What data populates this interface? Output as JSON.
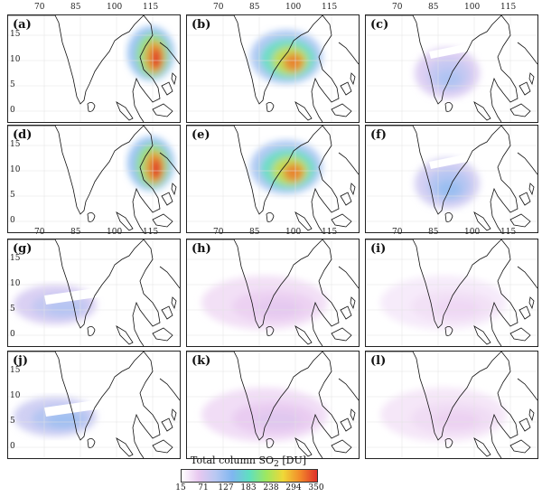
{
  "figure": {
    "panels": [
      {
        "label": "(a)",
        "kind": "A",
        "intensity": 1.0
      },
      {
        "label": "(b)",
        "kind": "B",
        "intensity": 1.0
      },
      {
        "label": "(c)",
        "kind": "C",
        "intensity": 0.6
      },
      {
        "label": "(d)",
        "kind": "A",
        "intensity": 1.0
      },
      {
        "label": "(e)",
        "kind": "B",
        "intensity": 1.0
      },
      {
        "label": "(f)",
        "kind": "C",
        "intensity": 0.7
      },
      {
        "label": "(g)",
        "kind": "D",
        "intensity": 0.6
      },
      {
        "label": "(h)",
        "kind": "E",
        "intensity": 0.45
      },
      {
        "label": "(i)",
        "kind": "E",
        "intensity": 0.3
      },
      {
        "label": "(j)",
        "kind": "D",
        "intensity": 0.7
      },
      {
        "label": "(k)",
        "kind": "E",
        "intensity": 0.5
      },
      {
        "label": "(l)",
        "kind": "E",
        "intensity": 0.35
      }
    ],
    "lon_ticks": [
      "70",
      "85",
      "100",
      "115"
    ],
    "lat_ticks": [
      "15",
      "10",
      "5",
      "0"
    ],
    "colorbar": {
      "title_prefix": "Total column SO",
      "title_sub": "2",
      "title_suffix": " [DU]",
      "ticks": [
        "15",
        "71",
        "127",
        "183",
        "238",
        "294",
        "350"
      ],
      "colors": [
        "#ffffff",
        "#e8c8f0",
        "#b9c8f2",
        "#7fb6f0",
        "#5fe0c0",
        "#9ee860",
        "#f0d838",
        "#f28a2a",
        "#e0302a"
      ]
    }
  }
}
